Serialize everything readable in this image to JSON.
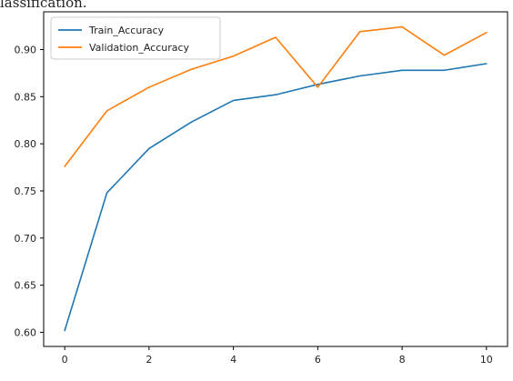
{
  "caption_fragment": "lassification.",
  "chart_data": {
    "type": "line",
    "x": [
      0,
      1,
      2,
      3,
      4,
      5,
      6,
      7,
      8,
      9,
      10
    ],
    "series": [
      {
        "name": "Train_Accuracy",
        "color": "#1f77b4",
        "values": [
          0.602,
          0.748,
          0.795,
          0.823,
          0.846,
          0.852,
          0.863,
          0.872,
          0.878,
          0.878,
          0.885
        ]
      },
      {
        "name": "Validation_Accuracy",
        "color": "#ff7f0e",
        "values": [
          0.776,
          0.835,
          0.86,
          0.879,
          0.893,
          0.913,
          0.86,
          0.919,
          0.924,
          0.894,
          0.918
        ]
      }
    ],
    "xticks": [
      "0",
      "2",
      "4",
      "6",
      "8",
      "10"
    ],
    "yticks": [
      "0.60",
      "0.65",
      "0.70",
      "0.75",
      "0.80",
      "0.85",
      "0.90"
    ],
    "xlim": [
      -0.5,
      10.5
    ],
    "ylim": [
      0.585,
      0.94
    ],
    "grid": false,
    "legend": "top-left",
    "title": "",
    "xlabel": "",
    "ylabel": ""
  }
}
